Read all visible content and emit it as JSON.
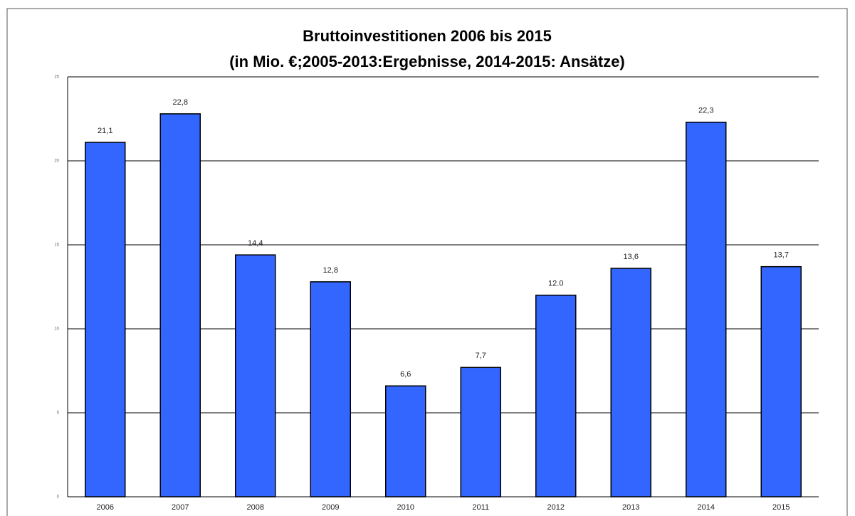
{
  "chart_data": {
    "type": "bar",
    "title": "Bruttoinvestitionen 2006 bis 2015",
    "subtitle": "(in Mio. €;2005-2013:Ergebnisse, 2014-2015: Ansätze)",
    "categories": [
      "2006",
      "2007",
      "2008",
      "2009",
      "2010",
      "2011",
      "2012",
      "2013",
      "2014",
      "2015"
    ],
    "values": [
      21.1,
      22.8,
      14.4,
      12.8,
      6.6,
      7.7,
      12.0,
      13.6,
      22.3,
      13.7
    ],
    "value_labels": [
      "21,1",
      "22,8",
      "14,4",
      "12,8",
      "6,6",
      "7,7",
      "12.0",
      "13,6",
      "22,3",
      "13,7"
    ],
    "color": "#3366ff",
    "ylim": [
      0,
      25
    ],
    "yticks": [
      0,
      5,
      10,
      15,
      20,
      25
    ],
    "grid": true
  }
}
